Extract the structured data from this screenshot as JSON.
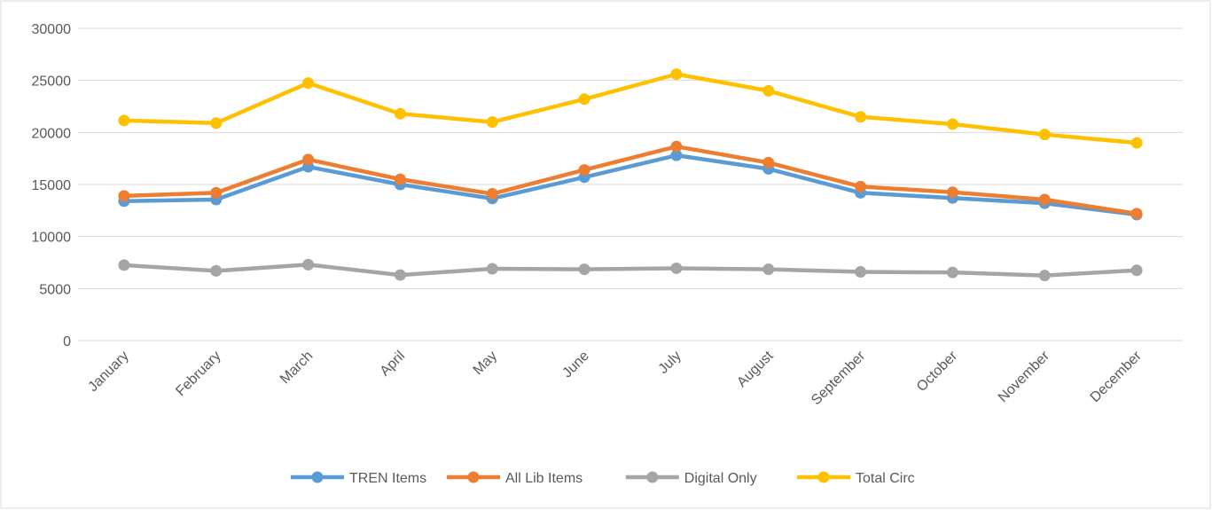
{
  "chart_data": {
    "type": "line",
    "categories": [
      "January",
      "February",
      "March",
      "April",
      "May",
      "June",
      "July",
      "August",
      "September",
      "October",
      "November",
      "December"
    ],
    "series": [
      {
        "name": "TREN Items",
        "color": "#5b9bd5",
        "values": [
          13400,
          13550,
          16700,
          15000,
          13650,
          15700,
          17800,
          16500,
          14200,
          13700,
          13200,
          12100
        ]
      },
      {
        "name": "All Lib Items",
        "color": "#ed7d31",
        "values": [
          13900,
          14200,
          17400,
          15500,
          14100,
          16400,
          18650,
          17100,
          14800,
          14250,
          13550,
          12200
        ]
      },
      {
        "name": "Digital Only",
        "color": "#a5a5a5",
        "values": [
          7250,
          6700,
          7300,
          6300,
          6900,
          6850,
          6950,
          6850,
          6600,
          6550,
          6250,
          6750
        ]
      },
      {
        "name": "Total Circ",
        "color": "#ffc000",
        "values": [
          21150,
          20900,
          24750,
          21800,
          21000,
          23200,
          25600,
          24000,
          21500,
          20800,
          19800,
          19000
        ]
      }
    ],
    "ylim": [
      0,
      30000
    ],
    "yticks": [
      0,
      5000,
      10000,
      15000,
      20000,
      25000,
      30000
    ],
    "grid": true,
    "legend": "bottom"
  }
}
